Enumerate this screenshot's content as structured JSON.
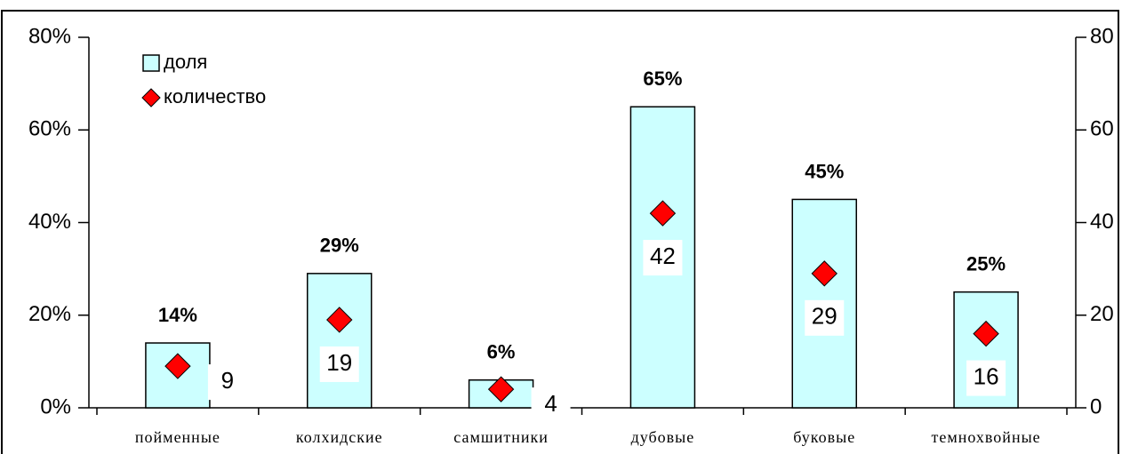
{
  "chart_data": {
    "type": "bar",
    "categories": [
      "пойменные",
      "колхидские",
      "самшитники",
      "дубовые",
      "буковые",
      "темнохвойные"
    ],
    "series": [
      {
        "name": "доля",
        "type": "bar",
        "color": "#ccffff",
        "values": [
          14,
          29,
          6,
          65,
          45,
          25
        ],
        "value_labels": [
          "14%",
          "29%",
          "6%",
          "65%",
          "45%",
          "25%"
        ]
      },
      {
        "name": "количество",
        "type": "scatter",
        "axis": "y2",
        "color": "#ff0000",
        "values": [
          9,
          19,
          4,
          42,
          29,
          16
        ]
      }
    ],
    "ylim": [
      0,
      80
    ],
    "yticks": [
      {
        "value": 0,
        "label": "0%"
      },
      {
        "value": 20,
        "label": "20%"
      },
      {
        "value": 40,
        "label": "40%"
      },
      {
        "value": 60,
        "label": "60%"
      },
      {
        "value": 80,
        "label": "80%"
      }
    ],
    "y2lim": [
      0,
      80
    ],
    "y2ticks": [
      0,
      20,
      40,
      60,
      80
    ],
    "legend": "top-left"
  }
}
